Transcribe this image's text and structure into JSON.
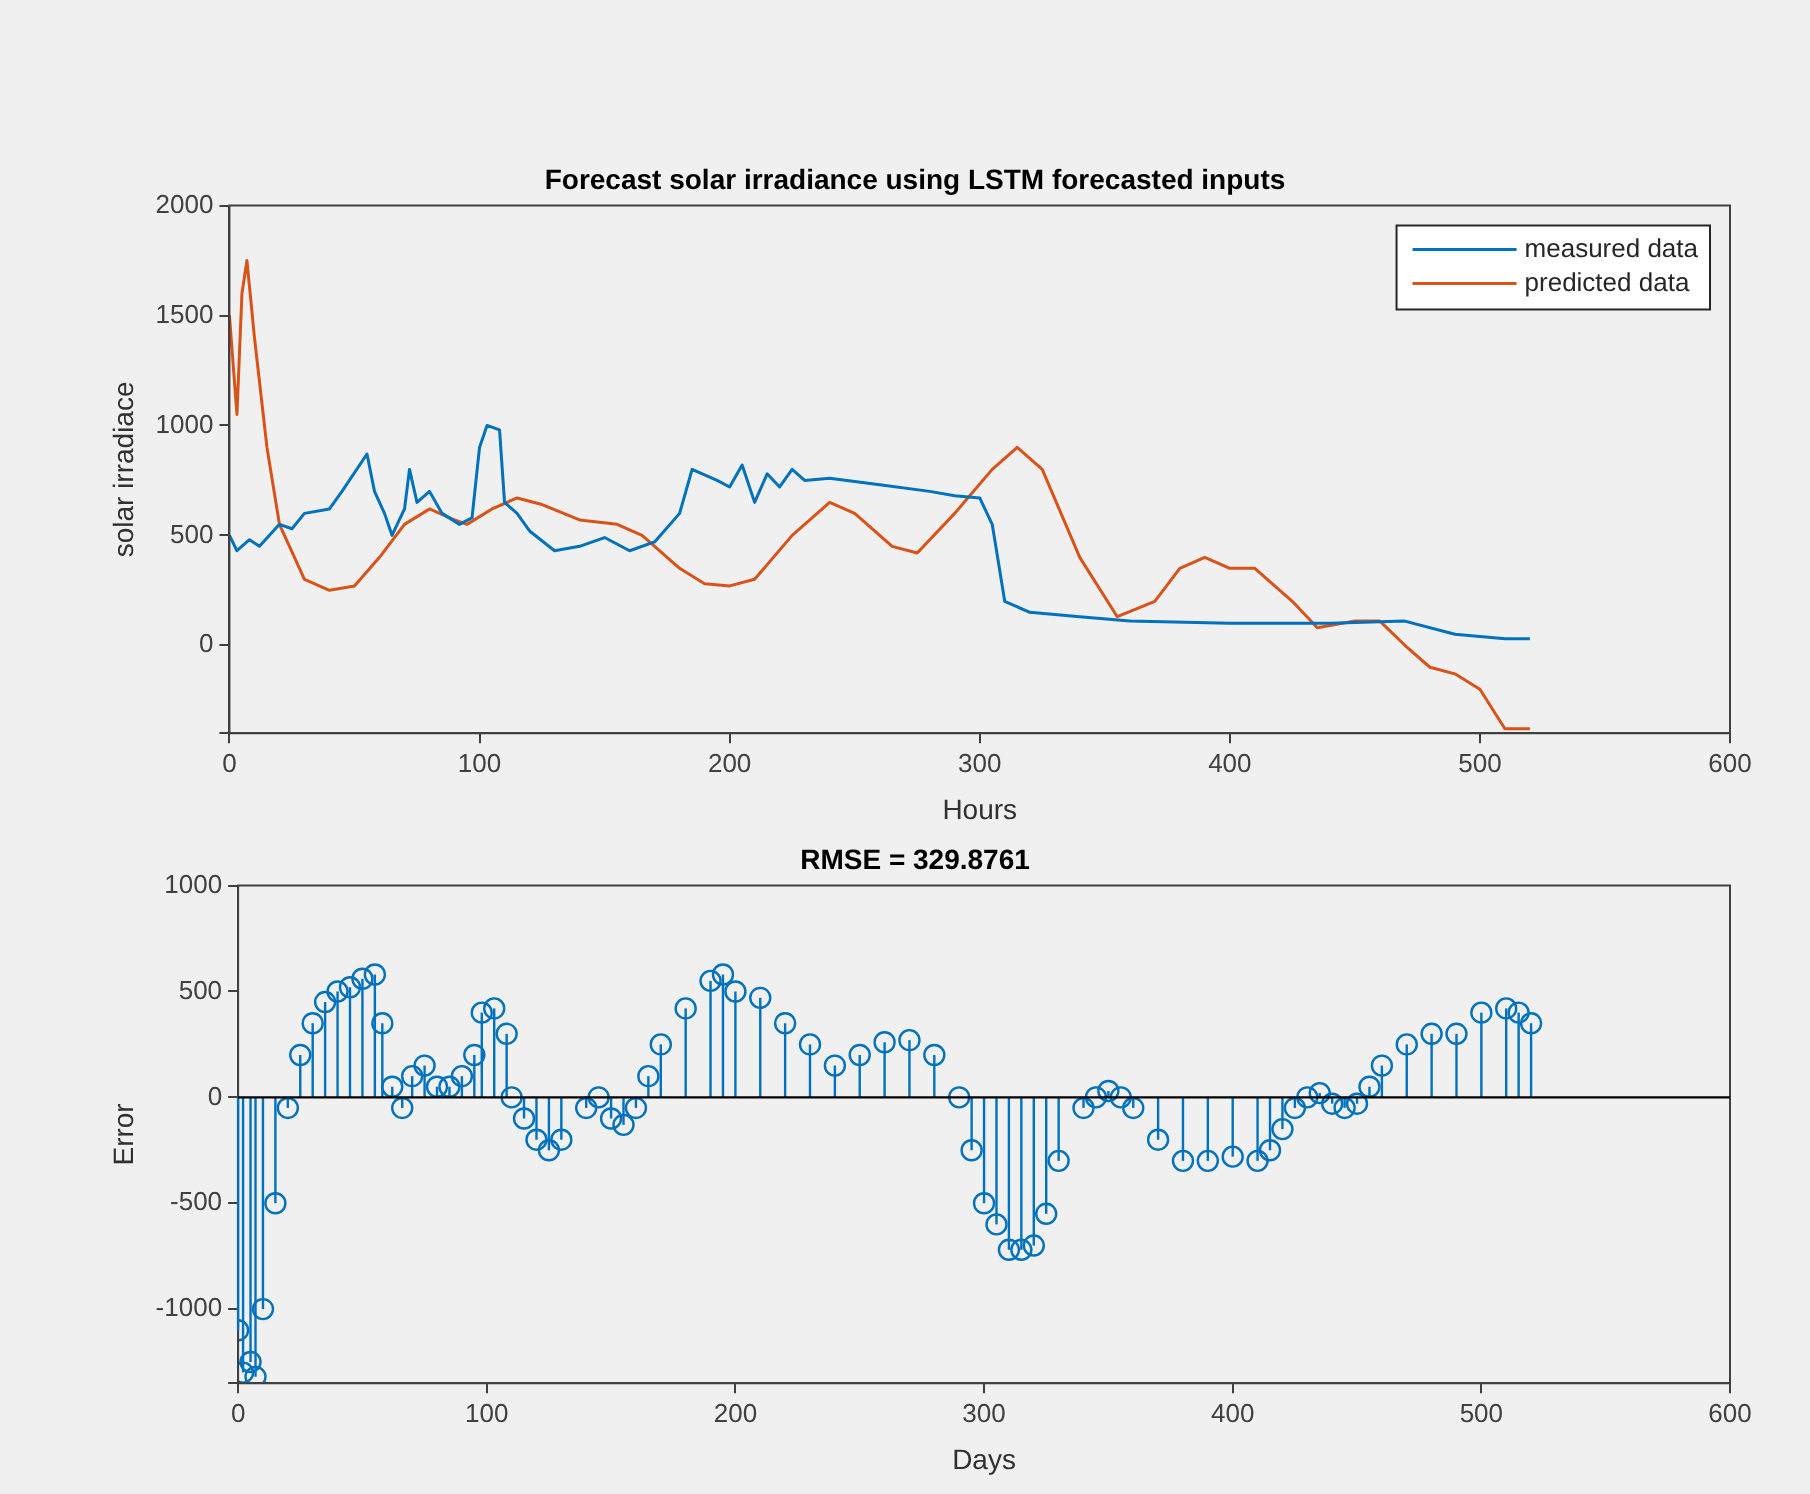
{
  "chart_data": [
    {
      "type": "line",
      "title": "Forecast solar irradiance using LSTM forecasted inputs",
      "xlabel": "Hours",
      "ylabel": "solar irradiace",
      "xlim": [
        0,
        600
      ],
      "xticks": [
        0,
        100,
        200,
        300,
        400,
        500,
        600
      ],
      "ylim": [
        -400,
        2000
      ],
      "yticks": [
        {
          "value": -400,
          "label": null
        },
        0,
        500,
        1000,
        1500,
        2000
      ],
      "legend": "top right",
      "marker": "none",
      "series": [
        {
          "name": "measured data",
          "color": "#0072bd",
          "x": [
            0,
            3,
            8,
            12,
            20,
            25,
            30,
            40,
            45,
            55,
            58,
            62,
            65,
            70,
            72,
            75,
            80,
            85,
            92,
            97,
            100,
            103,
            108,
            110,
            115,
            120,
            130,
            140,
            150,
            160,
            170,
            180,
            185,
            195,
            200,
            205,
            210,
            215,
            220,
            225,
            230,
            240,
            260,
            280,
            290,
            300,
            305,
            310,
            320,
            340,
            360,
            400,
            440,
            470,
            490,
            510,
            520
          ],
          "values": [
            500,
            430,
            480,
            450,
            550,
            530,
            600,
            620,
            700,
            870,
            700,
            600,
            500,
            620,
            800,
            650,
            700,
            600,
            550,
            580,
            900,
            1000,
            980,
            650,
            600,
            520,
            430,
            450,
            490,
            430,
            470,
            600,
            800,
            750,
            720,
            820,
            650,
            780,
            720,
            800,
            750,
            760,
            730,
            700,
            680,
            670,
            550,
            200,
            150,
            130,
            110,
            100,
            100,
            110,
            50,
            30,
            30
          ]
        },
        {
          "name": "predicted data",
          "color": "#d95319",
          "x": [
            0,
            3,
            5,
            7,
            10,
            15,
            20,
            30,
            40,
            50,
            60,
            70,
            80,
            90,
            95,
            105,
            115,
            125,
            140,
            155,
            165,
            180,
            190,
            200,
            210,
            225,
            240,
            250,
            265,
            275,
            290,
            305,
            315,
            325,
            340,
            355,
            370,
            380,
            390,
            400,
            410,
            425,
            435,
            440,
            450,
            460,
            470,
            480,
            490,
            500,
            510,
            520
          ],
          "values": [
            1500,
            1050,
            1600,
            1750,
            1400,
            900,
            550,
            300,
            250,
            270,
            400,
            550,
            620,
            570,
            550,
            620,
            670,
            640,
            570,
            550,
            500,
            350,
            280,
            270,
            300,
            500,
            650,
            600,
            450,
            420,
            600,
            800,
            900,
            800,
            400,
            130,
            200,
            350,
            400,
            350,
            350,
            200,
            80,
            90,
            110,
            110,
            0,
            -100,
            -130,
            -200,
            -380,
            -380
          ]
        }
      ]
    },
    {
      "type": "lollipop",
      "title": "RMSE = 329.8761",
      "xlabel": "Days",
      "ylabel": "Error",
      "xlim": [
        0,
        600
      ],
      "xticks": [
        0,
        100,
        200,
        300,
        400,
        500,
        600
      ],
      "ylim": [
        -1350,
        1000
      ],
      "yticks": [
        {
          "value": -1350,
          "label": null
        },
        -1000,
        -500,
        0,
        500,
        1000
      ],
      "marker": "circle",
      "color": "#0072bd",
      "x": [
        0,
        2,
        5,
        7,
        10,
        15,
        20,
        25,
        30,
        35,
        40,
        45,
        50,
        55,
        58,
        62,
        66,
        70,
        75,
        80,
        85,
        90,
        95,
        98,
        103,
        108,
        110,
        115,
        120,
        125,
        130,
        140,
        145,
        150,
        155,
        160,
        165,
        170,
        180,
        190,
        195,
        200,
        210,
        220,
        230,
        240,
        250,
        260,
        270,
        280,
        290,
        295,
        300,
        305,
        310,
        315,
        320,
        325,
        330,
        340,
        345,
        350,
        355,
        360,
        370,
        380,
        390,
        400,
        410,
        415,
        420,
        425,
        430,
        435,
        440,
        445,
        450,
        455,
        460,
        470,
        480,
        490,
        500,
        510,
        515,
        520
      ],
      "values": [
        -1100,
        -1300,
        -1250,
        -1320,
        -1000,
        -500,
        -50,
        200,
        350,
        450,
        500,
        520,
        560,
        580,
        350,
        50,
        -50,
        100,
        150,
        50,
        50,
        100,
        200,
        400,
        420,
        300,
        0,
        -100,
        -200,
        -250,
        -200,
        -50,
        0,
        -100,
        -130,
        -50,
        100,
        250,
        420,
        550,
        580,
        500,
        470,
        350,
        250,
        150,
        200,
        260,
        270,
        200,
        0,
        -250,
        -500,
        -600,
        -720,
        -720,
        -700,
        -550,
        -300,
        -50,
        0,
        30,
        0,
        -50,
        -200,
        -300,
        -300,
        -280,
        -300,
        -250,
        -150,
        -50,
        0,
        20,
        -30,
        -50,
        -30,
        50,
        150,
        250,
        300,
        300,
        400,
        420,
        400,
        350
      ]
    }
  ]
}
